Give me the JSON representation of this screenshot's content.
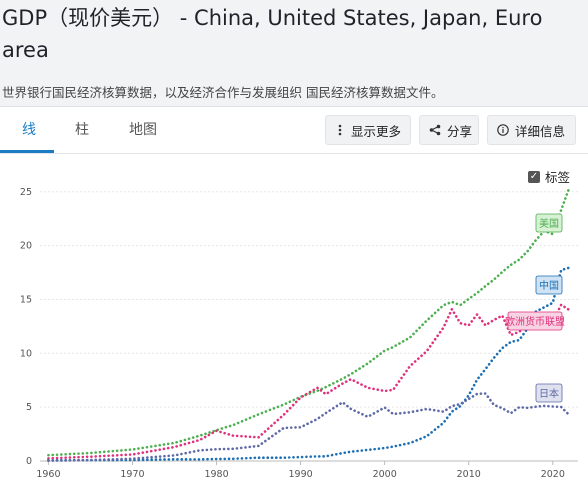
{
  "header": {
    "title": "GDP（现价美元） - China, United States, Japan, Euro area",
    "subtitle": "世界银行国民经济核算数据，以及经济合作与发展组织 国民经济核算数据文件。"
  },
  "tabs": [
    {
      "label": "线",
      "active": true
    },
    {
      "label": "柱",
      "active": false
    },
    {
      "label": "地图",
      "active": false
    }
  ],
  "toolbar": {
    "more_label": "显示更多",
    "share_label": "分享",
    "details_label": "详细信息",
    "more_icon": "vertical-dots-icon",
    "share_icon": "share-icon",
    "details_icon": "info-icon"
  },
  "labels_toggle": {
    "label": "标签",
    "checked": true
  },
  "chart_data": {
    "type": "line",
    "x": [
      1960,
      1965,
      1970,
      1975,
      1978,
      1980,
      1982,
      1985,
      1988,
      1990,
      1992,
      1993,
      1995,
      1996,
      1998,
      2000,
      2001,
      2003,
      2005,
      2007,
      2008,
      2009,
      2010,
      2011,
      2012,
      2013,
      2014,
      2015,
      2016,
      2017,
      2018,
      2019,
      2020,
      2021,
      2022
    ],
    "xticks": [
      1960,
      1970,
      1980,
      1990,
      2000,
      2010,
      2020
    ],
    "yticks": [
      0,
      5,
      10,
      15,
      20,
      25
    ],
    "ylim": [
      0,
      26
    ],
    "xlim": [
      1959,
      2023
    ],
    "series": [
      {
        "name": "美国",
        "color": "#4caf50",
        "label_fill": "#d8f0d4",
        "values": [
          0.54,
          0.74,
          1.07,
          1.68,
          2.35,
          2.86,
          3.34,
          4.34,
          5.24,
          5.96,
          6.52,
          6.86,
          7.64,
          8.07,
          9.06,
          10.25,
          10.58,
          11.46,
          13.04,
          14.47,
          14.77,
          14.48,
          15.05,
          15.6,
          16.25,
          16.84,
          17.55,
          18.21,
          18.7,
          19.48,
          20.53,
          21.38,
          21.06,
          23.32,
          25.46
        ]
      },
      {
        "name": "中国",
        "color": "#1c6fb5",
        "label_fill": "#cfe3f5",
        "values": [
          0.06,
          0.07,
          0.09,
          0.16,
          0.15,
          0.19,
          0.2,
          0.31,
          0.31,
          0.36,
          0.43,
          0.44,
          0.73,
          0.86,
          1.03,
          1.21,
          1.34,
          1.66,
          2.29,
          3.55,
          4.59,
          5.1,
          6.09,
          7.55,
          8.53,
          9.57,
          10.48,
          11.06,
          11.23,
          12.31,
          13.89,
          14.28,
          14.69,
          17.73,
          17.96
        ]
      },
      {
        "name": "欧洲货币联盟",
        "color": "#e0317b",
        "label_fill": "#f8d3e3",
        "values": [
          0.24,
          0.4,
          0.6,
          1.3,
          1.95,
          2.8,
          2.35,
          2.2,
          4.3,
          5.9,
          6.8,
          6.2,
          7.2,
          7.6,
          6.8,
          6.5,
          6.6,
          8.8,
          10.2,
          12.4,
          14.1,
          12.8,
          12.6,
          13.6,
          12.6,
          13.1,
          13.5,
          11.7,
          12.0,
          12.7,
          13.7,
          13.4,
          13.0,
          14.5,
          14.0
        ]
      },
      {
        "name": "日本",
        "color": "#5e6aa6",
        "label_fill": "#dfe1ef",
        "values": [
          0.04,
          0.09,
          0.21,
          0.52,
          0.98,
          1.1,
          1.13,
          1.4,
          3.07,
          3.13,
          3.91,
          4.45,
          5.45,
          4.83,
          4.1,
          4.97,
          4.36,
          4.52,
          4.83,
          4.58,
          5.1,
          5.29,
          5.76,
          6.23,
          6.27,
          5.21,
          4.9,
          4.44,
          5.0,
          4.93,
          5.04,
          5.12,
          5.06,
          5.01,
          4.23
        ]
      }
    ]
  }
}
